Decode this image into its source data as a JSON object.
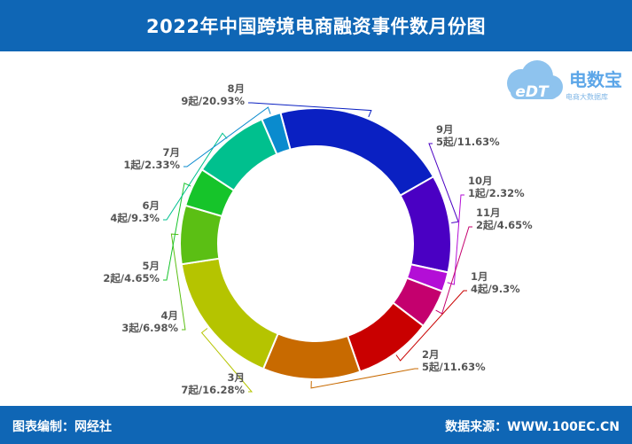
{
  "header": {
    "title": "2022年中国跨境电商融资事件数月份图"
  },
  "footer": {
    "editor": "图表编制：网经社",
    "source": "数据来源：WWW.100EC.CN"
  },
  "logo": {
    "title": "电数宝",
    "subtitle": "电商大数据库",
    "mark": "eDT",
    "icon": "cloud-logo-icon"
  },
  "colors": {
    "header_bg": "#0f66b5",
    "slices": [
      "#c90000",
      "#c86a00",
      "#b5c400",
      "#5bbf14",
      "#16c42a",
      "#00c08e",
      "#0a8bce",
      "#0a20c2",
      "#4a00c3",
      "#b30ed6",
      "#c4006e"
    ]
  },
  "chart_data": {
    "type": "pie",
    "style": "donut",
    "start": "top, clockwise: 8月 → 9月 → 10月 → 11月 → 1月 → … → 7月",
    "slices": [
      {
        "month": "1月",
        "count": 4,
        "detail": "4起/9.3%",
        "percent": 9.3
      },
      {
        "month": "2月",
        "count": 5,
        "detail": "5起/11.63%",
        "percent": 11.63
      },
      {
        "month": "3月",
        "count": 7,
        "detail": "7起/16.28%",
        "percent": 16.28
      },
      {
        "month": "4月",
        "count": 3,
        "detail": "3起/6.98%",
        "percent": 6.98
      },
      {
        "month": "5月",
        "count": 2,
        "detail": "2起/4.65%",
        "percent": 4.65
      },
      {
        "month": "6月",
        "count": 4,
        "detail": "4起/9.3%",
        "percent": 9.3
      },
      {
        "month": "7月",
        "count": 1,
        "detail": "1起/2.33%",
        "percent": 2.33
      },
      {
        "month": "8月",
        "count": 9,
        "detail": "9起/20.93%",
        "percent": 20.93
      },
      {
        "month": "9月",
        "count": 5,
        "detail": "5起/11.63%",
        "percent": 11.63
      },
      {
        "month": "10月",
        "count": 1,
        "detail": "1起/2.32%",
        "percent": 2.32
      },
      {
        "month": "11月",
        "count": 2,
        "detail": "2起/4.65%",
        "percent": 4.65
      }
    ]
  }
}
